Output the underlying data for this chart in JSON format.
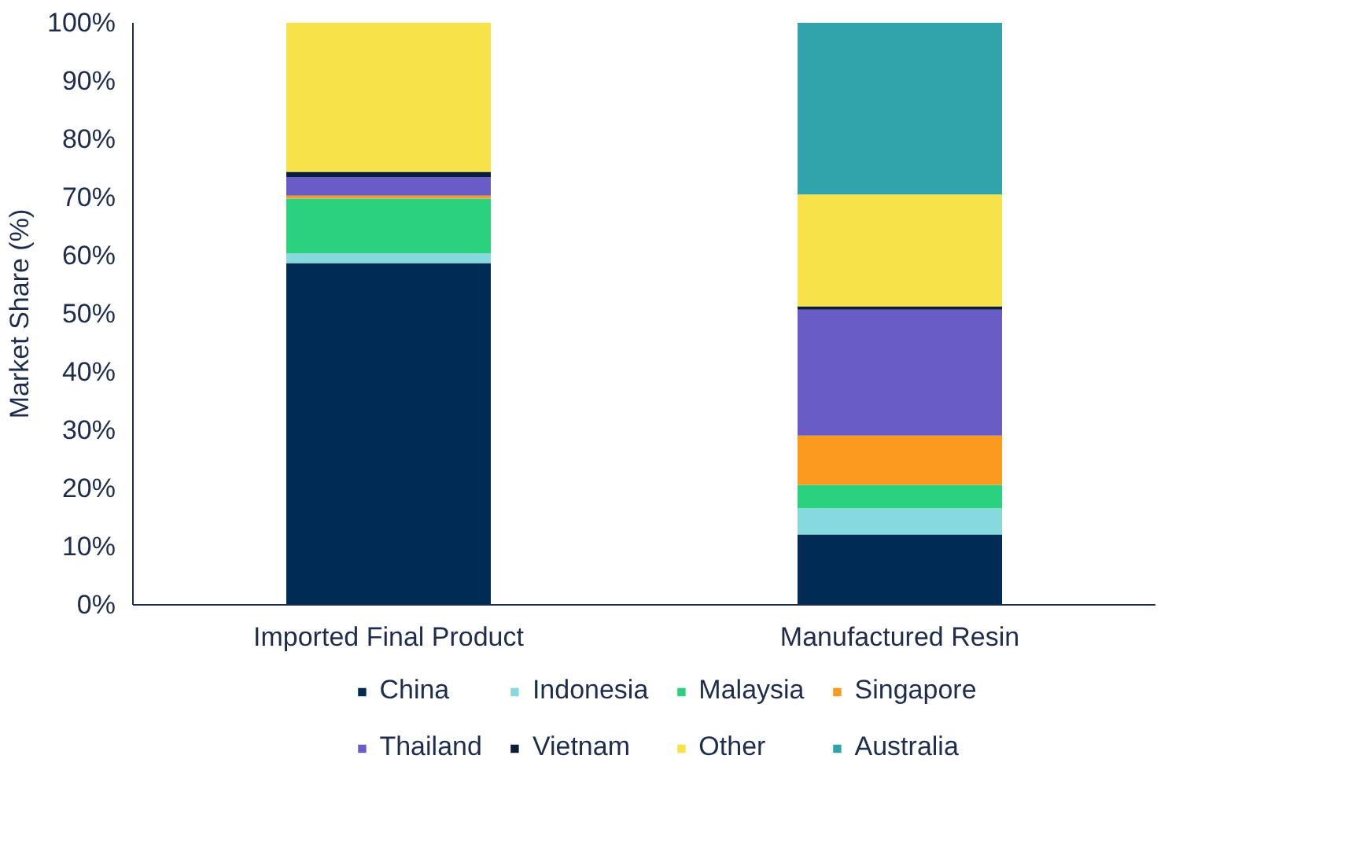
{
  "chart_data": {
    "type": "bar",
    "stacked": true,
    "ylabel": "Market Share (%)",
    "categories": [
      "Imported Final Product",
      "Manufactured Resin"
    ],
    "ylim": [
      0,
      100
    ],
    "yticks": [
      {
        "value": 0,
        "label": "0%"
      },
      {
        "value": 10,
        "label": "10%"
      },
      {
        "value": 20,
        "label": "20%"
      },
      {
        "value": 30,
        "label": "30%"
      },
      {
        "value": 40,
        "label": "40%"
      },
      {
        "value": 50,
        "label": "50%"
      },
      {
        "value": 60,
        "label": "60%"
      },
      {
        "value": 70,
        "label": "70%"
      },
      {
        "value": 80,
        "label": "80%"
      },
      {
        "value": 90,
        "label": "90%"
      },
      {
        "value": 100,
        "label": "100%"
      }
    ],
    "legend": "bottom",
    "grid": false,
    "series": [
      {
        "name": "China",
        "color": "#002b55",
        "values": [
          58.7,
          12.1
        ]
      },
      {
        "name": "Indonesia",
        "color": "#86dadf",
        "values": [
          1.7,
          4.5
        ]
      },
      {
        "name": "Malaysia",
        "color": "#2ad17e",
        "values": [
          9.4,
          4.0
        ]
      },
      {
        "name": "Singapore",
        "color": "#fa9a1e",
        "values": [
          0.5,
          8.5
        ]
      },
      {
        "name": "Thailand",
        "color": "#6a5cc6",
        "values": [
          3.2,
          21.6
        ]
      },
      {
        "name": "Vietnam",
        "color": "#0b1f3a",
        "values": [
          0.9,
          0.6
        ]
      },
      {
        "name": "Other",
        "color": "#f7e24a",
        "values": [
          25.6,
          19.2
        ]
      },
      {
        "name": "Australia",
        "color": "#31a3ab",
        "values": [
          0,
          29.5
        ]
      }
    ]
  }
}
